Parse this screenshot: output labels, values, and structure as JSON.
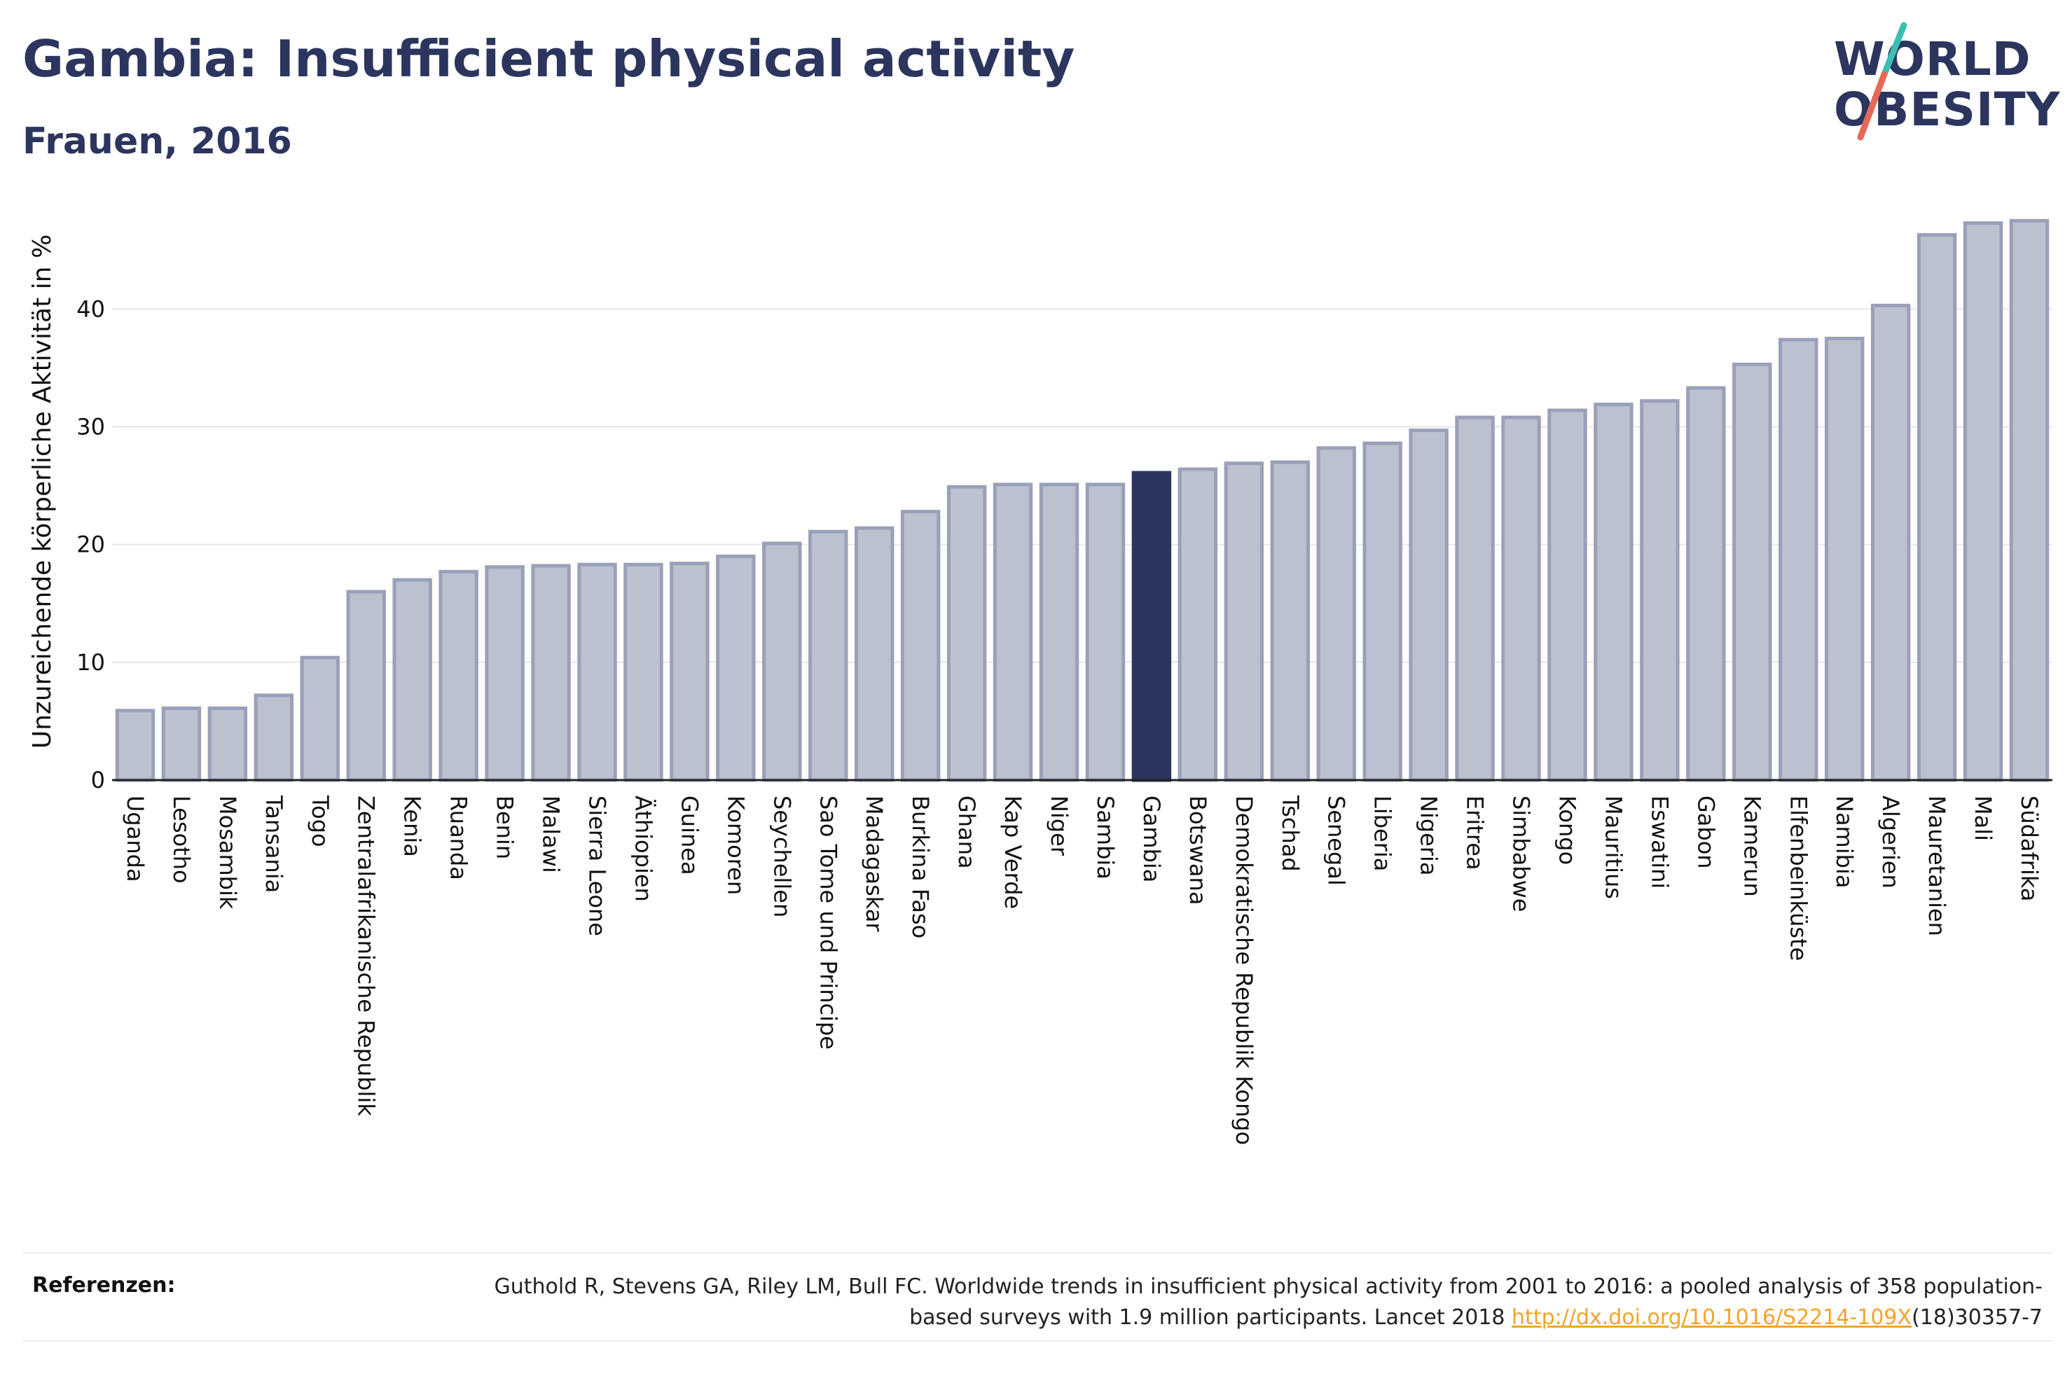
{
  "header": {
    "title": "Gambia: Insufficient physical activity",
    "subtitle": "Frauen, 2016"
  },
  "logo": {
    "line1": "WORLD",
    "line2": "OBESITY",
    "slash_colors": [
      "#3bbfb4",
      "#e8685a"
    ]
  },
  "chart_data": {
    "type": "bar",
    "title": "Gambia: Insufficient physical activity",
    "subtitle": "Frauen, 2016",
    "xlabel": "",
    "ylabel": "Unzureichende körperliche Aktivität in %",
    "ylim": [
      0,
      49
    ],
    "yticks": [
      0,
      10,
      20,
      30,
      40
    ],
    "grid": true,
    "highlight": "Gambia",
    "colors": {
      "default": "#bcc1d0",
      "default_border": "#9aa0b8",
      "highlight": "#2b355e"
    },
    "categories": [
      "Uganda",
      "Lesotho",
      "Mosambik",
      "Tansania",
      "Togo",
      "Zentralafrikanische Republik",
      "Kenia",
      "Ruanda",
      "Benin",
      "Malawi",
      "Sierra Leone",
      "Äthiopien",
      "Guinea",
      "Komoren",
      "Seychellen",
      "Sao Tome und Principe",
      "Madagaskar",
      "Burkina Faso",
      "Ghana",
      "Kap Verde",
      "Niger",
      "Sambia",
      "Gambia",
      "Botswana",
      "Demokratische Republik Kongo",
      "Tschad",
      "Senegal",
      "Liberia",
      "Nigeria",
      "Eritrea",
      "Simbabwe",
      "Kongo",
      "Mauritius",
      "Eswatini",
      "Gabon",
      "Kamerun",
      "Elfenbeinküste",
      "Namibia",
      "Algerien",
      "Mauretanien",
      "Mali",
      "Südafrika"
    ],
    "values": [
      5.9,
      6.1,
      6.1,
      7.2,
      10.4,
      16.0,
      17.0,
      17.7,
      18.1,
      18.2,
      18.3,
      18.3,
      18.4,
      19.0,
      20.1,
      21.1,
      21.4,
      22.8,
      24.9,
      25.1,
      25.1,
      25.1,
      26.1,
      26.4,
      26.9,
      27.0,
      28.2,
      28.6,
      29.7,
      30.8,
      30.8,
      31.4,
      31.9,
      32.2,
      33.3,
      35.3,
      37.4,
      37.5,
      40.3,
      46.3,
      47.3,
      47.5
    ]
  },
  "references": {
    "label": "Referenzen:",
    "text_part1": "Guthold R, Stevens GA, Riley LM, Bull FC. Worldwide trends in insufficient physical activity from 2001 to 2016: a pooled analysis of 358 population-based surveys with 1.9 million participants. Lancet 2018 ",
    "link": "http://dx.doi.org/10.1016/S2214-109X",
    "text_part2": "(18)30357-7"
  }
}
